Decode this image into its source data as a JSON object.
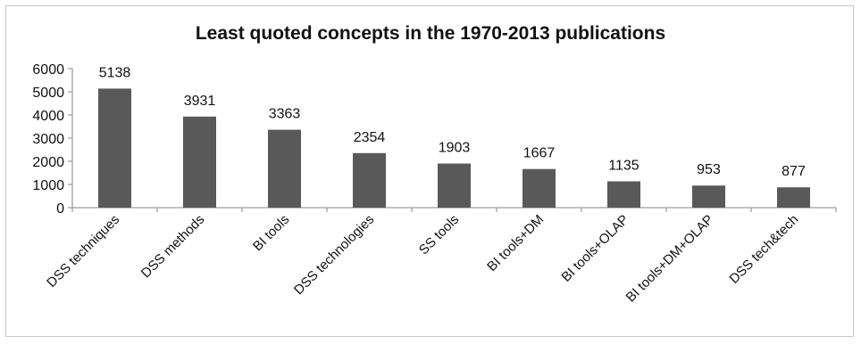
{
  "chart_data": {
    "type": "bar",
    "title": "Least quoted concepts in the 1970-2013 publications",
    "categories": [
      "DSS techniques",
      "DSS methods",
      "BI tools",
      "DSS technologies",
      "SS tools",
      "BI tools+DM",
      "BI tools+OLAP",
      "BI tools+DM+OLAP",
      "DSS tech&tech"
    ],
    "values": [
      5138,
      3931,
      3363,
      2354,
      1903,
      1667,
      1135,
      953,
      877
    ],
    "data_labels": [
      "5138",
      "3931",
      "3363",
      "2354",
      "1903",
      "1667",
      "1135",
      "953",
      "877"
    ],
    "ylim": [
      0,
      6000
    ],
    "yticks": [
      0,
      1000,
      2000,
      3000,
      4000,
      5000,
      6000
    ],
    "ytick_labels": [
      "0",
      "1000",
      "2000",
      "3000",
      "4000",
      "5000",
      "6000"
    ],
    "xlabel": "",
    "ylabel": "",
    "grid": false,
    "legend": "none",
    "colors": {
      "bar": "#595959",
      "axis": "#868686"
    }
  }
}
